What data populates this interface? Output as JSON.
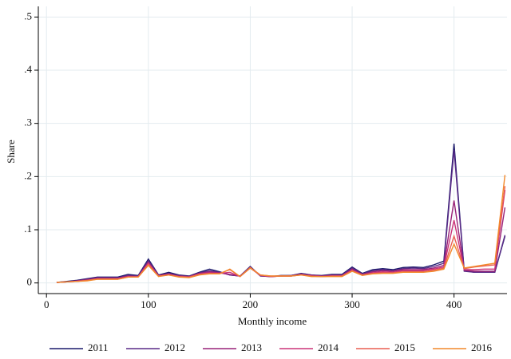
{
  "chart_data": {
    "type": "line",
    "x_label": "Monthly income",
    "y_label": "Share",
    "x": [
      10,
      20,
      30,
      40,
      50,
      60,
      70,
      80,
      90,
      100,
      110,
      120,
      130,
      140,
      150,
      160,
      170,
      180,
      190,
      200,
      210,
      220,
      230,
      240,
      250,
      260,
      270,
      280,
      290,
      300,
      310,
      320,
      330,
      340,
      350,
      360,
      370,
      380,
      390,
      400,
      410,
      420,
      430,
      440,
      450
    ],
    "series": [
      {
        "name": "2011",
        "color": "#1c1a6b",
        "values": [
          0.001,
          0.003,
          0.005,
          0.008,
          0.011,
          0.011,
          0.011,
          0.016,
          0.014,
          0.045,
          0.015,
          0.02,
          0.015,
          0.013,
          0.02,
          0.026,
          0.021,
          0.015,
          0.013,
          0.031,
          0.013,
          0.012,
          0.014,
          0.014,
          0.018,
          0.015,
          0.014,
          0.016,
          0.016,
          0.03,
          0.018,
          0.025,
          0.027,
          0.025,
          0.029,
          0.03,
          0.029,
          0.034,
          0.041,
          0.262,
          0.023,
          0.02,
          0.02,
          0.02,
          0.088
        ]
      },
      {
        "name": "2012",
        "color": "#5a2a87",
        "values": [
          0.001,
          0.002,
          0.004,
          0.007,
          0.01,
          0.01,
          0.01,
          0.014,
          0.013,
          0.042,
          0.014,
          0.018,
          0.014,
          0.012,
          0.019,
          0.023,
          0.02,
          0.015,
          0.013,
          0.03,
          0.013,
          0.012,
          0.013,
          0.014,
          0.017,
          0.015,
          0.013,
          0.015,
          0.015,
          0.028,
          0.017,
          0.023,
          0.025,
          0.023,
          0.027,
          0.028,
          0.027,
          0.031,
          0.037,
          0.25,
          0.022,
          0.02,
          0.02,
          0.02,
          0.09
        ]
      },
      {
        "name": "2013",
        "color": "#992278",
        "values": [
          0.001,
          0.002,
          0.004,
          0.006,
          0.009,
          0.009,
          0.009,
          0.013,
          0.012,
          0.039,
          0.014,
          0.017,
          0.013,
          0.012,
          0.018,
          0.021,
          0.019,
          0.016,
          0.013,
          0.029,
          0.014,
          0.012,
          0.013,
          0.013,
          0.016,
          0.014,
          0.013,
          0.014,
          0.014,
          0.026,
          0.016,
          0.021,
          0.023,
          0.022,
          0.025,
          0.025,
          0.025,
          0.028,
          0.033,
          0.155,
          0.024,
          0.022,
          0.022,
          0.022,
          0.142
        ]
      },
      {
        "name": "2014",
        "color": "#cc3378",
        "values": [
          0.001,
          0.002,
          0.003,
          0.005,
          0.008,
          0.008,
          0.008,
          0.012,
          0.012,
          0.037,
          0.013,
          0.016,
          0.012,
          0.011,
          0.017,
          0.019,
          0.018,
          0.02,
          0.012,
          0.028,
          0.014,
          0.012,
          0.013,
          0.013,
          0.016,
          0.013,
          0.012,
          0.013,
          0.013,
          0.024,
          0.015,
          0.019,
          0.021,
          0.02,
          0.023,
          0.023,
          0.023,
          0.026,
          0.03,
          0.118,
          0.025,
          0.025,
          0.026,
          0.026,
          0.175
        ]
      },
      {
        "name": "2015",
        "color": "#ea5f52",
        "values": [
          0.001,
          0.002,
          0.003,
          0.005,
          0.007,
          0.007,
          0.007,
          0.011,
          0.011,
          0.035,
          0.013,
          0.015,
          0.012,
          0.011,
          0.016,
          0.018,
          0.018,
          0.025,
          0.012,
          0.029,
          0.015,
          0.013,
          0.013,
          0.013,
          0.015,
          0.013,
          0.012,
          0.013,
          0.013,
          0.023,
          0.015,
          0.018,
          0.019,
          0.019,
          0.021,
          0.021,
          0.021,
          0.024,
          0.028,
          0.088,
          0.027,
          0.03,
          0.032,
          0.034,
          0.182
        ]
      },
      {
        "name": "2016",
        "color": "#f2892c",
        "values": [
          0.001,
          0.002,
          0.003,
          0.004,
          0.007,
          0.007,
          0.007,
          0.011,
          0.011,
          0.033,
          0.012,
          0.015,
          0.011,
          0.01,
          0.015,
          0.017,
          0.017,
          0.026,
          0.012,
          0.028,
          0.015,
          0.013,
          0.013,
          0.013,
          0.015,
          0.012,
          0.012,
          0.012,
          0.012,
          0.022,
          0.014,
          0.017,
          0.018,
          0.018,
          0.02,
          0.02,
          0.02,
          0.022,
          0.026,
          0.073,
          0.028,
          0.031,
          0.034,
          0.037,
          0.203
        ]
      }
    ],
    "xlim": [
      -8,
      452
    ],
    "ylim": [
      -0.02,
      0.52
    ],
    "xticks": [
      0,
      100,
      200,
      300,
      400
    ],
    "yticks": [
      0,
      {
        "value": 0.1,
        "label": ".1"
      },
      {
        "value": 0.2,
        "label": ".2"
      },
      {
        "value": 0.3,
        "label": ".3"
      },
      {
        "value": 0.4,
        "label": ".4"
      },
      {
        "value": 0.5,
        "label": ".5"
      }
    ],
    "grid": true,
    "legend": "bottom"
  }
}
